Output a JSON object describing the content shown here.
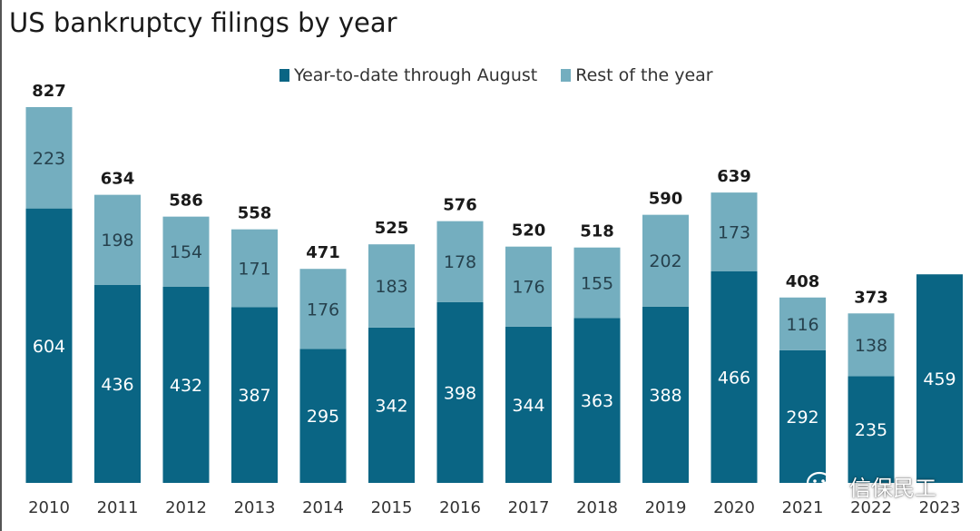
{
  "chart_data": {
    "type": "bar",
    "stacked": true,
    "title": "US bankruptcy filings by year",
    "categories": [
      "2010",
      "2011",
      "2012",
      "2013",
      "2014",
      "2015",
      "2016",
      "2017",
      "2018",
      "2019",
      "2020",
      "2021",
      "2022",
      "2023"
    ],
    "series": [
      {
        "name": "Year-to-date through August",
        "color": "#0a6584",
        "values": [
          604,
          436,
          432,
          387,
          295,
          342,
          398,
          344,
          363,
          388,
          466,
          292,
          235,
          459
        ]
      },
      {
        "name": "Rest of the year",
        "color": "#74aebf",
        "values": [
          223,
          198,
          154,
          171,
          176,
          183,
          178,
          176,
          155,
          202,
          173,
          116,
          138,
          null
        ]
      }
    ],
    "totals": [
      827,
      634,
      586,
      558,
      471,
      525,
      576,
      520,
      518,
      590,
      639,
      408,
      373,
      null
    ],
    "ylim": [
      0,
      827
    ],
    "grid": false,
    "legend_position": "top-center"
  },
  "watermark": {
    "text": "信保民工",
    "icon": "wechat-icon"
  }
}
